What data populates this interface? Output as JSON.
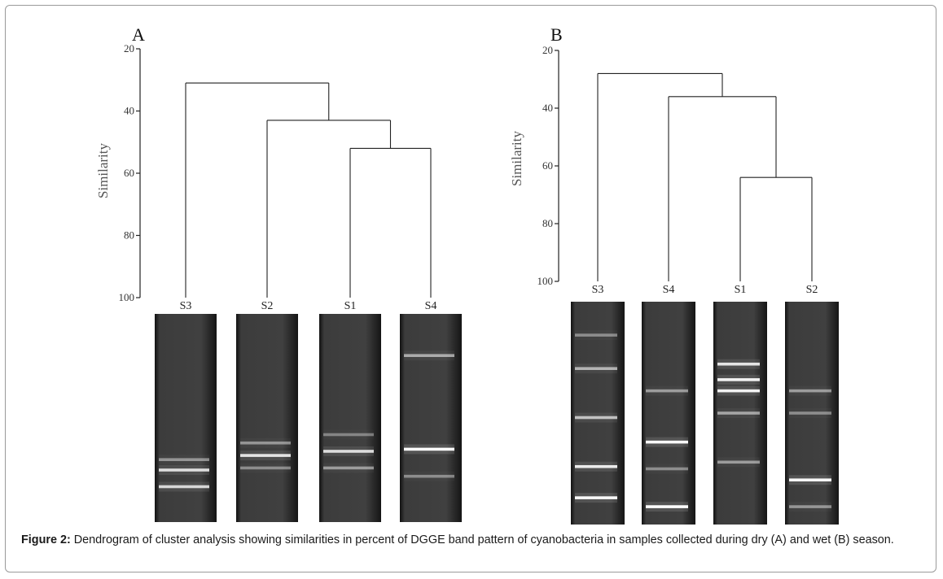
{
  "caption": {
    "label": "Figure 2:",
    "text": " Dendrogram of cluster analysis showing similarities in percent of DGGE band pattern of cyanobacteria in samples collected during dry (A) and wet (B) season."
  },
  "panels": [
    {
      "id": "A",
      "label": "A",
      "ylabel": "Similarity",
      "ticks": [
        20,
        40,
        60,
        80,
        100
      ],
      "leaves": [
        "S3",
        "S2",
        "S1",
        "S4"
      ],
      "merges": [
        {
          "left": "S1",
          "right": "S4",
          "similarity": 52
        },
        {
          "left": "S2",
          "right": "S1+S4",
          "similarity": 43
        },
        {
          "left": "S3",
          "right": "S2+S1+S4",
          "similarity": 31
        }
      ],
      "gel_lanes": [
        {
          "name": "S3",
          "bands": [
            {
              "pos": 0.75,
              "intensity": 0.75
            },
            {
              "pos": 0.83,
              "intensity": 0.7
            },
            {
              "pos": 0.7,
              "intensity": 0.25
            }
          ]
        },
        {
          "name": "S2",
          "bands": [
            {
              "pos": 0.68,
              "intensity": 0.8
            },
            {
              "pos": 0.62,
              "intensity": 0.25
            },
            {
              "pos": 0.74,
              "intensity": 0.2
            }
          ]
        },
        {
          "name": "S1",
          "bands": [
            {
              "pos": 0.66,
              "intensity": 0.75
            },
            {
              "pos": 0.74,
              "intensity": 0.3
            },
            {
              "pos": 0.58,
              "intensity": 0.15
            }
          ]
        },
        {
          "name": "S4",
          "bands": [
            {
              "pos": 0.65,
              "intensity": 1.0
            },
            {
              "pos": 0.2,
              "intensity": 0.4
            },
            {
              "pos": 0.78,
              "intensity": 0.2
            }
          ]
        }
      ]
    },
    {
      "id": "B",
      "label": "B",
      "ylabel": "Similarity",
      "ticks": [
        20,
        40,
        60,
        80,
        100
      ],
      "leaves": [
        "S3",
        "S4",
        "S1",
        "S2"
      ],
      "merges": [
        {
          "left": "S1",
          "right": "S2",
          "similarity": 64
        },
        {
          "left": "S4",
          "right": "S1+S2",
          "similarity": 36
        },
        {
          "left": "S3",
          "right": "S4+S1+S2",
          "similarity": 28
        }
      ],
      "gel_lanes": [
        {
          "name": "S3",
          "bands": [
            {
              "pos": 0.3,
              "intensity": 0.45
            },
            {
              "pos": 0.52,
              "intensity": 0.55
            },
            {
              "pos": 0.74,
              "intensity": 0.85
            },
            {
              "pos": 0.88,
              "intensity": 0.95
            },
            {
              "pos": 0.15,
              "intensity": 0.2
            }
          ]
        },
        {
          "name": "S4",
          "bands": [
            {
              "pos": 0.63,
              "intensity": 0.95
            },
            {
              "pos": 0.92,
              "intensity": 1.0
            },
            {
              "pos": 0.4,
              "intensity": 0.3
            },
            {
              "pos": 0.75,
              "intensity": 0.2
            }
          ]
        },
        {
          "name": "S1",
          "bands": [
            {
              "pos": 0.28,
              "intensity": 0.8
            },
            {
              "pos": 0.35,
              "intensity": 0.9
            },
            {
              "pos": 0.4,
              "intensity": 0.9
            },
            {
              "pos": 0.5,
              "intensity": 0.35
            },
            {
              "pos": 0.72,
              "intensity": 0.3
            }
          ]
        },
        {
          "name": "S2",
          "bands": [
            {
              "pos": 0.8,
              "intensity": 0.95
            },
            {
              "pos": 0.4,
              "intensity": 0.3
            },
            {
              "pos": 0.5,
              "intensity": 0.2
            },
            {
              "pos": 0.92,
              "intensity": 0.25
            }
          ]
        }
      ]
    }
  ],
  "colors": {
    "line": "#222222",
    "gel_bg": "#3a3a3a",
    "band": "#ffffff"
  }
}
